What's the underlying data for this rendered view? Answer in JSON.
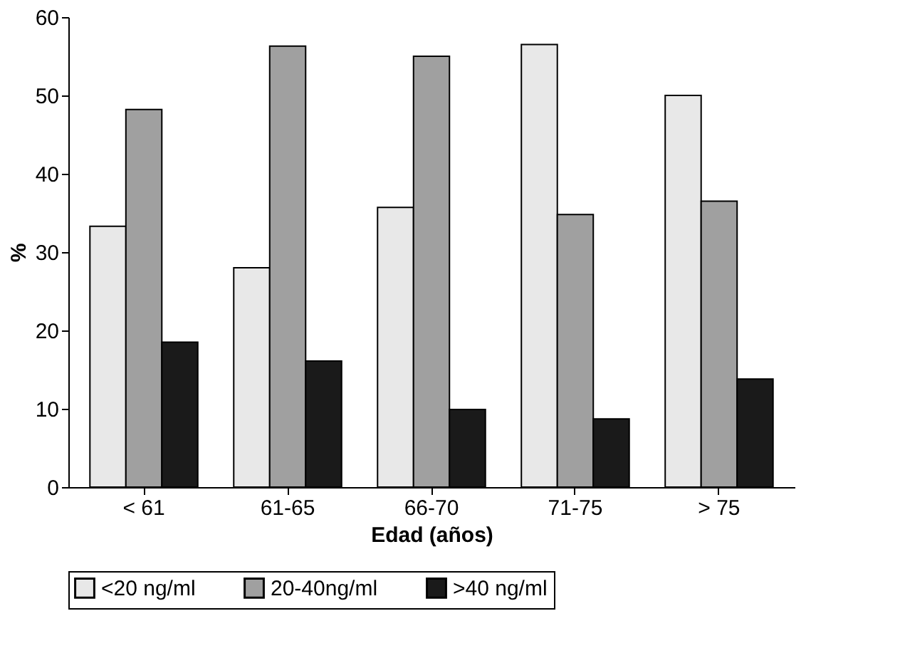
{
  "chart_data": {
    "type": "bar",
    "xlabel": "Edad (años)",
    "ylabel": "%",
    "categories": [
      "< 61",
      "61-65",
      "66-70",
      "71-75",
      "> 75"
    ],
    "series": [
      {
        "name": "<20 ng/ml",
        "color": "#e8e8e8",
        "values": [
          33.3,
          28,
          35.7,
          56.5,
          50
        ]
      },
      {
        "name": "20-40ng/ml",
        "color": "#a0a0a0",
        "values": [
          48.2,
          56.3,
          55,
          34.8,
          36.5
        ]
      },
      {
        "name": ">40 ng/ml",
        "color": "#1a1a1a",
        "values": [
          18.5,
          16.1,
          9.9,
          8.7,
          13.8
        ]
      }
    ],
    "ylim": [
      0,
      60
    ],
    "yticks": [
      0,
      10,
      20,
      30,
      40,
      50,
      60
    ],
    "grid": false,
    "legend": "bottom"
  }
}
